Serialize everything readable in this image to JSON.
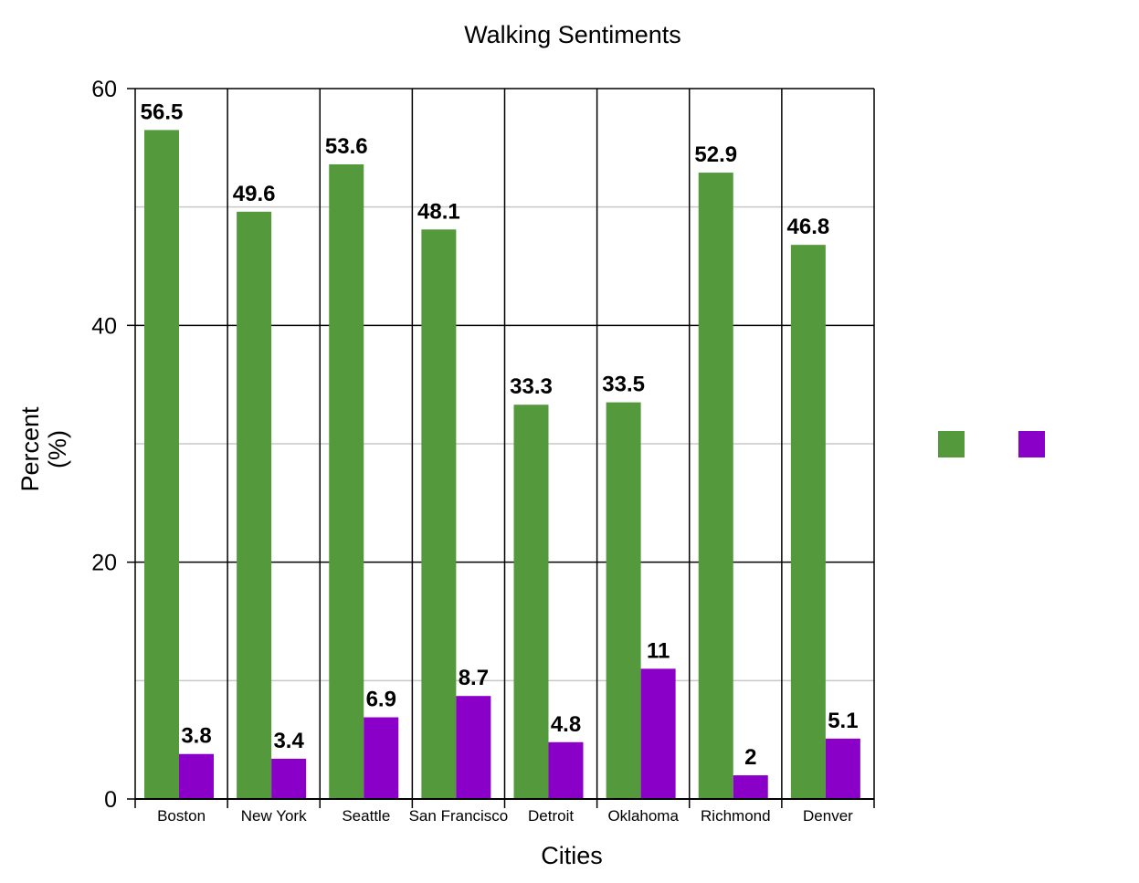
{
  "chart_data": {
    "type": "bar",
    "title": "Walking Sentiments",
    "xlabel": "Cities",
    "ylabel_lines": [
      "Percent",
      "(%)"
    ],
    "ylim": [
      0,
      60
    ],
    "yticks": [
      "0",
      "20",
      "40",
      "60"
    ],
    "categories": [
      "Boston",
      "New York",
      "Seattle",
      "San Francisco",
      "Detroit",
      "Oklahoma",
      "Richmond",
      "Denver"
    ],
    "series": [
      {
        "color": "#55993d",
        "values": [
          56.5,
          49.6,
          53.6,
          48.1,
          33.3,
          33.5,
          52.9,
          46.8
        ],
        "labels": [
          "56.5",
          "49.6",
          "53.6",
          "48.1",
          "33.3",
          "33.5",
          "52.9",
          "46.8"
        ]
      },
      {
        "color": "#8a00c8",
        "values": [
          3.8,
          3.4,
          6.9,
          8.7,
          4.8,
          11,
          2,
          5.1
        ],
        "labels": [
          "3.8",
          "3.4",
          "6.9",
          "8.7",
          "4.8",
          "11",
          "2",
          "5.1"
        ]
      }
    ],
    "grid": true,
    "legend": {
      "position": "right",
      "entries": [
        "",
        ""
      ]
    }
  }
}
